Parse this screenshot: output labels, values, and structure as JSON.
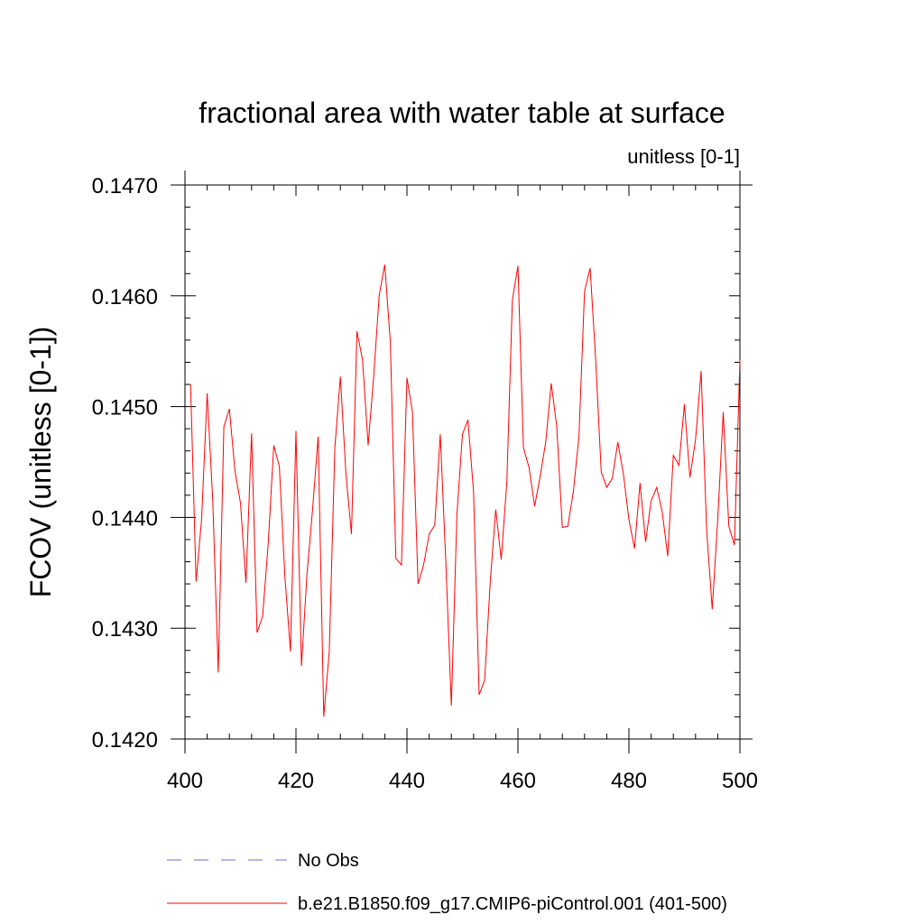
{
  "chart_data": {
    "type": "line",
    "title": "fractional area with water table at surface",
    "subtitle": "unitless [0-1]",
    "ylabel": "FCOV  (unitless [0-1])",
    "xlabel": "",
    "xlim": [
      400,
      500
    ],
    "ylim": [
      0.142,
      0.147
    ],
    "x_ticks": [
      400,
      420,
      440,
      460,
      480,
      500
    ],
    "x_tick_labels": [
      "400",
      "420",
      "440",
      "460",
      "480",
      "500"
    ],
    "y_ticks": [
      0.142,
      0.143,
      0.144,
      0.145,
      0.146,
      0.147
    ],
    "y_tick_labels": [
      "0.1420",
      "0.1430",
      "0.1440",
      "0.1450",
      "0.1460",
      "0.1470"
    ],
    "grid": false,
    "legend_placement": "bottom",
    "series": [
      {
        "name": "b.e21.B1850.f09_g17.CMIP6-piControl.001 (401-500)",
        "color": "#ff0000",
        "style": "solid",
        "x": [
          401,
          402,
          403,
          404,
          405,
          406,
          407,
          408,
          409,
          410,
          411,
          412,
          413,
          414,
          415,
          416,
          417,
          418,
          419,
          420,
          421,
          422,
          423,
          424,
          425,
          426,
          427,
          428,
          429,
          430,
          431,
          432,
          433,
          434,
          435,
          436,
          437,
          438,
          439,
          440,
          441,
          442,
          443,
          444,
          445,
          446,
          447,
          448,
          449,
          450,
          451,
          452,
          453,
          454,
          455,
          456,
          457,
          458,
          459,
          460,
          461,
          462,
          463,
          464,
          465,
          466,
          467,
          468,
          469,
          470,
          471,
          472,
          473,
          474,
          475,
          476,
          477,
          478,
          479,
          480,
          481,
          482,
          483,
          484,
          485,
          486,
          487,
          488,
          489,
          490,
          491,
          492,
          493,
          494,
          495,
          496,
          497,
          498,
          499,
          500
        ],
        "y": [
          0.1452,
          0.14342,
          0.14398,
          0.14512,
          0.14415,
          0.1426,
          0.14482,
          0.14498,
          0.14442,
          0.14413,
          0.14341,
          0.14476,
          0.14296,
          0.14311,
          0.14377,
          0.14465,
          0.14446,
          0.14347,
          0.14279,
          0.14478,
          0.14266,
          0.1435,
          0.14408,
          0.14473,
          0.1422,
          0.14279,
          0.14463,
          0.14527,
          0.14439,
          0.14385,
          0.14568,
          0.14542,
          0.14465,
          0.14527,
          0.14601,
          0.14628,
          0.14558,
          0.14363,
          0.14357,
          0.14526,
          0.14495,
          0.1434,
          0.14357,
          0.14385,
          0.14393,
          0.14475,
          0.14359,
          0.1423,
          0.14403,
          0.14475,
          0.14488,
          0.14423,
          0.1424,
          0.14253,
          0.14342,
          0.14407,
          0.14362,
          0.14432,
          0.14596,
          0.14627,
          0.14463,
          0.14445,
          0.1441,
          0.14437,
          0.14468,
          0.14521,
          0.14482,
          0.14391,
          0.14392,
          0.14424,
          0.14473,
          0.14604,
          0.14625,
          0.14543,
          0.14441,
          0.14427,
          0.14435,
          0.14468,
          0.14439,
          0.14398,
          0.14372,
          0.14431,
          0.14378,
          0.14415,
          0.14427,
          0.14405,
          0.14365,
          0.14456,
          0.14447,
          0.14502,
          0.14436,
          0.1447,
          0.14532,
          0.14389,
          0.14317,
          0.14398,
          0.14495,
          0.14392,
          0.14375,
          0.14542
        ]
      }
    ],
    "legend": [
      {
        "label": "No Obs",
        "color": "#7b68c8",
        "style": "dashed"
      },
      {
        "label": "b.e21.B1850.f09_g17.CMIP6-piControl.001 (401-500)",
        "color": "#ff0000",
        "style": "solid"
      }
    ]
  }
}
